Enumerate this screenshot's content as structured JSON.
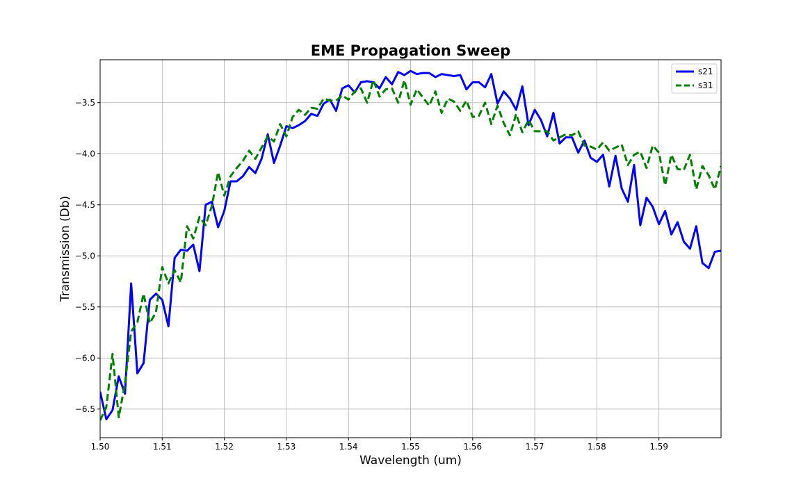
{
  "chart_data": {
    "type": "line",
    "title": "EME Propagation Sweep",
    "xlabel": "Wavelength (um)",
    "ylabel": "Transmission (Db)",
    "xlim": [
      1.5,
      1.6
    ],
    "ylim": [
      -6.78,
      -3.08
    ],
    "x_ticks": [
      "1.50",
      "1.51",
      "1.52",
      "1.53",
      "1.54",
      "1.55",
      "1.56",
      "1.57",
      "1.58",
      "1.59"
    ],
    "y_ticks": [
      "−6.5",
      "−6.0",
      "−5.5",
      "−5.0",
      "−4.5",
      "−4.0",
      "−3.5"
    ],
    "grid": true,
    "legend_position": "top-right",
    "x": [
      1.5,
      1.501,
      1.502,
      1.503,
      1.504,
      1.505,
      1.506,
      1.507,
      1.508,
      1.509,
      1.51,
      1.511,
      1.512,
      1.513,
      1.514,
      1.515,
      1.516,
      1.517,
      1.518,
      1.519,
      1.52,
      1.521,
      1.522,
      1.523,
      1.524,
      1.525,
      1.526,
      1.527,
      1.528,
      1.529,
      1.53,
      1.531,
      1.532,
      1.533,
      1.534,
      1.535,
      1.536,
      1.537,
      1.538,
      1.539,
      1.54,
      1.541,
      1.542,
      1.543,
      1.544,
      1.545,
      1.546,
      1.547,
      1.548,
      1.549,
      1.55,
      1.551,
      1.552,
      1.553,
      1.554,
      1.555,
      1.556,
      1.557,
      1.558,
      1.559,
      1.56,
      1.561,
      1.562,
      1.563,
      1.564,
      1.565,
      1.566,
      1.567,
      1.568,
      1.569,
      1.57,
      1.571,
      1.572,
      1.573,
      1.574,
      1.575,
      1.576,
      1.577,
      1.578,
      1.579,
      1.58,
      1.581,
      1.582,
      1.583,
      1.584,
      1.585,
      1.586,
      1.587,
      1.588,
      1.589,
      1.59,
      1.591,
      1.592,
      1.593,
      1.594,
      1.595,
      1.596,
      1.597,
      1.598,
      1.599,
      1.6
    ],
    "series": [
      {
        "name": "s21",
        "color": "#0000ff",
        "style": "solid",
        "values": [
          -6.33,
          -6.6,
          -6.51,
          -6.18,
          -6.35,
          -5.27,
          -6.15,
          -6.05,
          -5.43,
          -5.37,
          -5.43,
          -5.69,
          -5.02,
          -4.94,
          -4.95,
          -4.89,
          -5.15,
          -4.5,
          -4.47,
          -4.72,
          -4.56,
          -4.27,
          -4.27,
          -4.22,
          -4.13,
          -4.19,
          -4.05,
          -3.81,
          -4.09,
          -3.92,
          -3.73,
          -3.75,
          -3.72,
          -3.68,
          -3.61,
          -3.63,
          -3.51,
          -3.47,
          -3.58,
          -3.36,
          -3.33,
          -3.4,
          -3.3,
          -3.29,
          -3.3,
          -3.36,
          -3.25,
          -3.32,
          -3.2,
          -3.23,
          -3.19,
          -3.22,
          -3.21,
          -3.21,
          -3.25,
          -3.22,
          -3.23,
          -3.24,
          -3.23,
          -3.37,
          -3.3,
          -3.3,
          -3.35,
          -3.22,
          -3.51,
          -3.39,
          -3.46,
          -3.57,
          -3.34,
          -3.72,
          -3.57,
          -3.67,
          -3.83,
          -3.6,
          -3.9,
          -3.84,
          -3.84,
          -3.99,
          -3.87,
          -4.04,
          -4.08,
          -4.01,
          -4.32,
          -4.02,
          -4.34,
          -4.47,
          -4.11,
          -4.7,
          -4.43,
          -4.52,
          -4.69,
          -4.56,
          -4.79,
          -4.67,
          -4.86,
          -4.93,
          -4.71,
          -5.07,
          -5.12,
          -4.96,
          -4.95
        ]
      },
      {
        "name": "s31",
        "color": "#008000",
        "style": "dashed",
        "values": [
          -6.61,
          -6.48,
          -5.96,
          -6.58,
          -6.25,
          -5.74,
          -5.65,
          -5.37,
          -5.66,
          -5.55,
          -5.11,
          -5.27,
          -5.14,
          -5.26,
          -4.71,
          -4.83,
          -4.62,
          -4.7,
          -4.51,
          -4.18,
          -4.41,
          -4.22,
          -4.14,
          -4.07,
          -3.97,
          -4.05,
          -3.94,
          -3.83,
          -3.88,
          -3.71,
          -3.83,
          -3.64,
          -3.57,
          -3.62,
          -3.55,
          -3.56,
          -3.46,
          -3.48,
          -3.48,
          -3.43,
          -3.47,
          -3.39,
          -3.36,
          -3.5,
          -3.28,
          -3.44,
          -3.37,
          -3.36,
          -3.5,
          -3.28,
          -3.52,
          -3.37,
          -3.45,
          -3.53,
          -3.39,
          -3.6,
          -3.46,
          -3.49,
          -3.58,
          -3.48,
          -3.64,
          -3.63,
          -3.5,
          -3.71,
          -3.53,
          -3.7,
          -3.82,
          -3.61,
          -3.79,
          -3.67,
          -3.78,
          -3.78,
          -3.78,
          -3.87,
          -3.84,
          -3.81,
          -3.82,
          -3.78,
          -3.92,
          -3.93,
          -3.96,
          -3.89,
          -3.97,
          -3.94,
          -3.91,
          -4.11,
          -4.01,
          -3.98,
          -4.14,
          -3.92,
          -3.99,
          -4.31,
          -4.01,
          -4.15,
          -4.16,
          -4.01,
          -4.35,
          -4.12,
          -4.21,
          -4.35,
          -4.12
        ]
      }
    ]
  }
}
